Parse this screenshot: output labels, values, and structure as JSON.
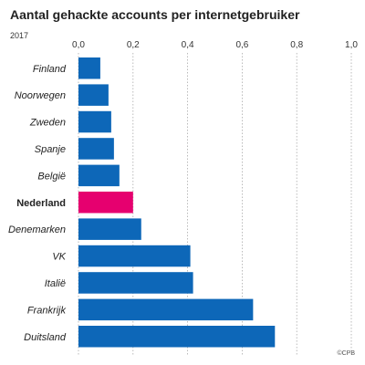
{
  "header": {
    "title": "Aantal gehackte accounts per internetgebruiker",
    "subtitle": "2017"
  },
  "footer": {
    "credit": "©CPB"
  },
  "colors": {
    "bar": "#0d67b8",
    "highlight": "#e6006f",
    "grid": "#aaaaaa"
  },
  "chart_data": {
    "type": "bar",
    "orientation": "horizontal",
    "title": "Aantal gehackte accounts per internetgebruiker",
    "subtitle": "2017",
    "categories": [
      "Finland",
      "Noorwegen",
      "Zweden",
      "Spanje",
      "België",
      "Nederland",
      "Denemarken",
      "VK",
      "Italië",
      "Frankrijk",
      "Duitsland"
    ],
    "values": [
      0.08,
      0.11,
      0.12,
      0.13,
      0.15,
      0.2,
      0.23,
      0.41,
      0.42,
      0.64,
      0.72
    ],
    "highlight": "Nederland",
    "xlim": [
      0,
      1.0
    ],
    "xticks": [
      0,
      0.2,
      0.4,
      0.6,
      0.8,
      1.0
    ],
    "xtick_labels": [
      "0,0",
      "0,2",
      "0,4",
      "0,6",
      "0,8",
      "1,0"
    ],
    "grid": true,
    "legend": "none"
  }
}
